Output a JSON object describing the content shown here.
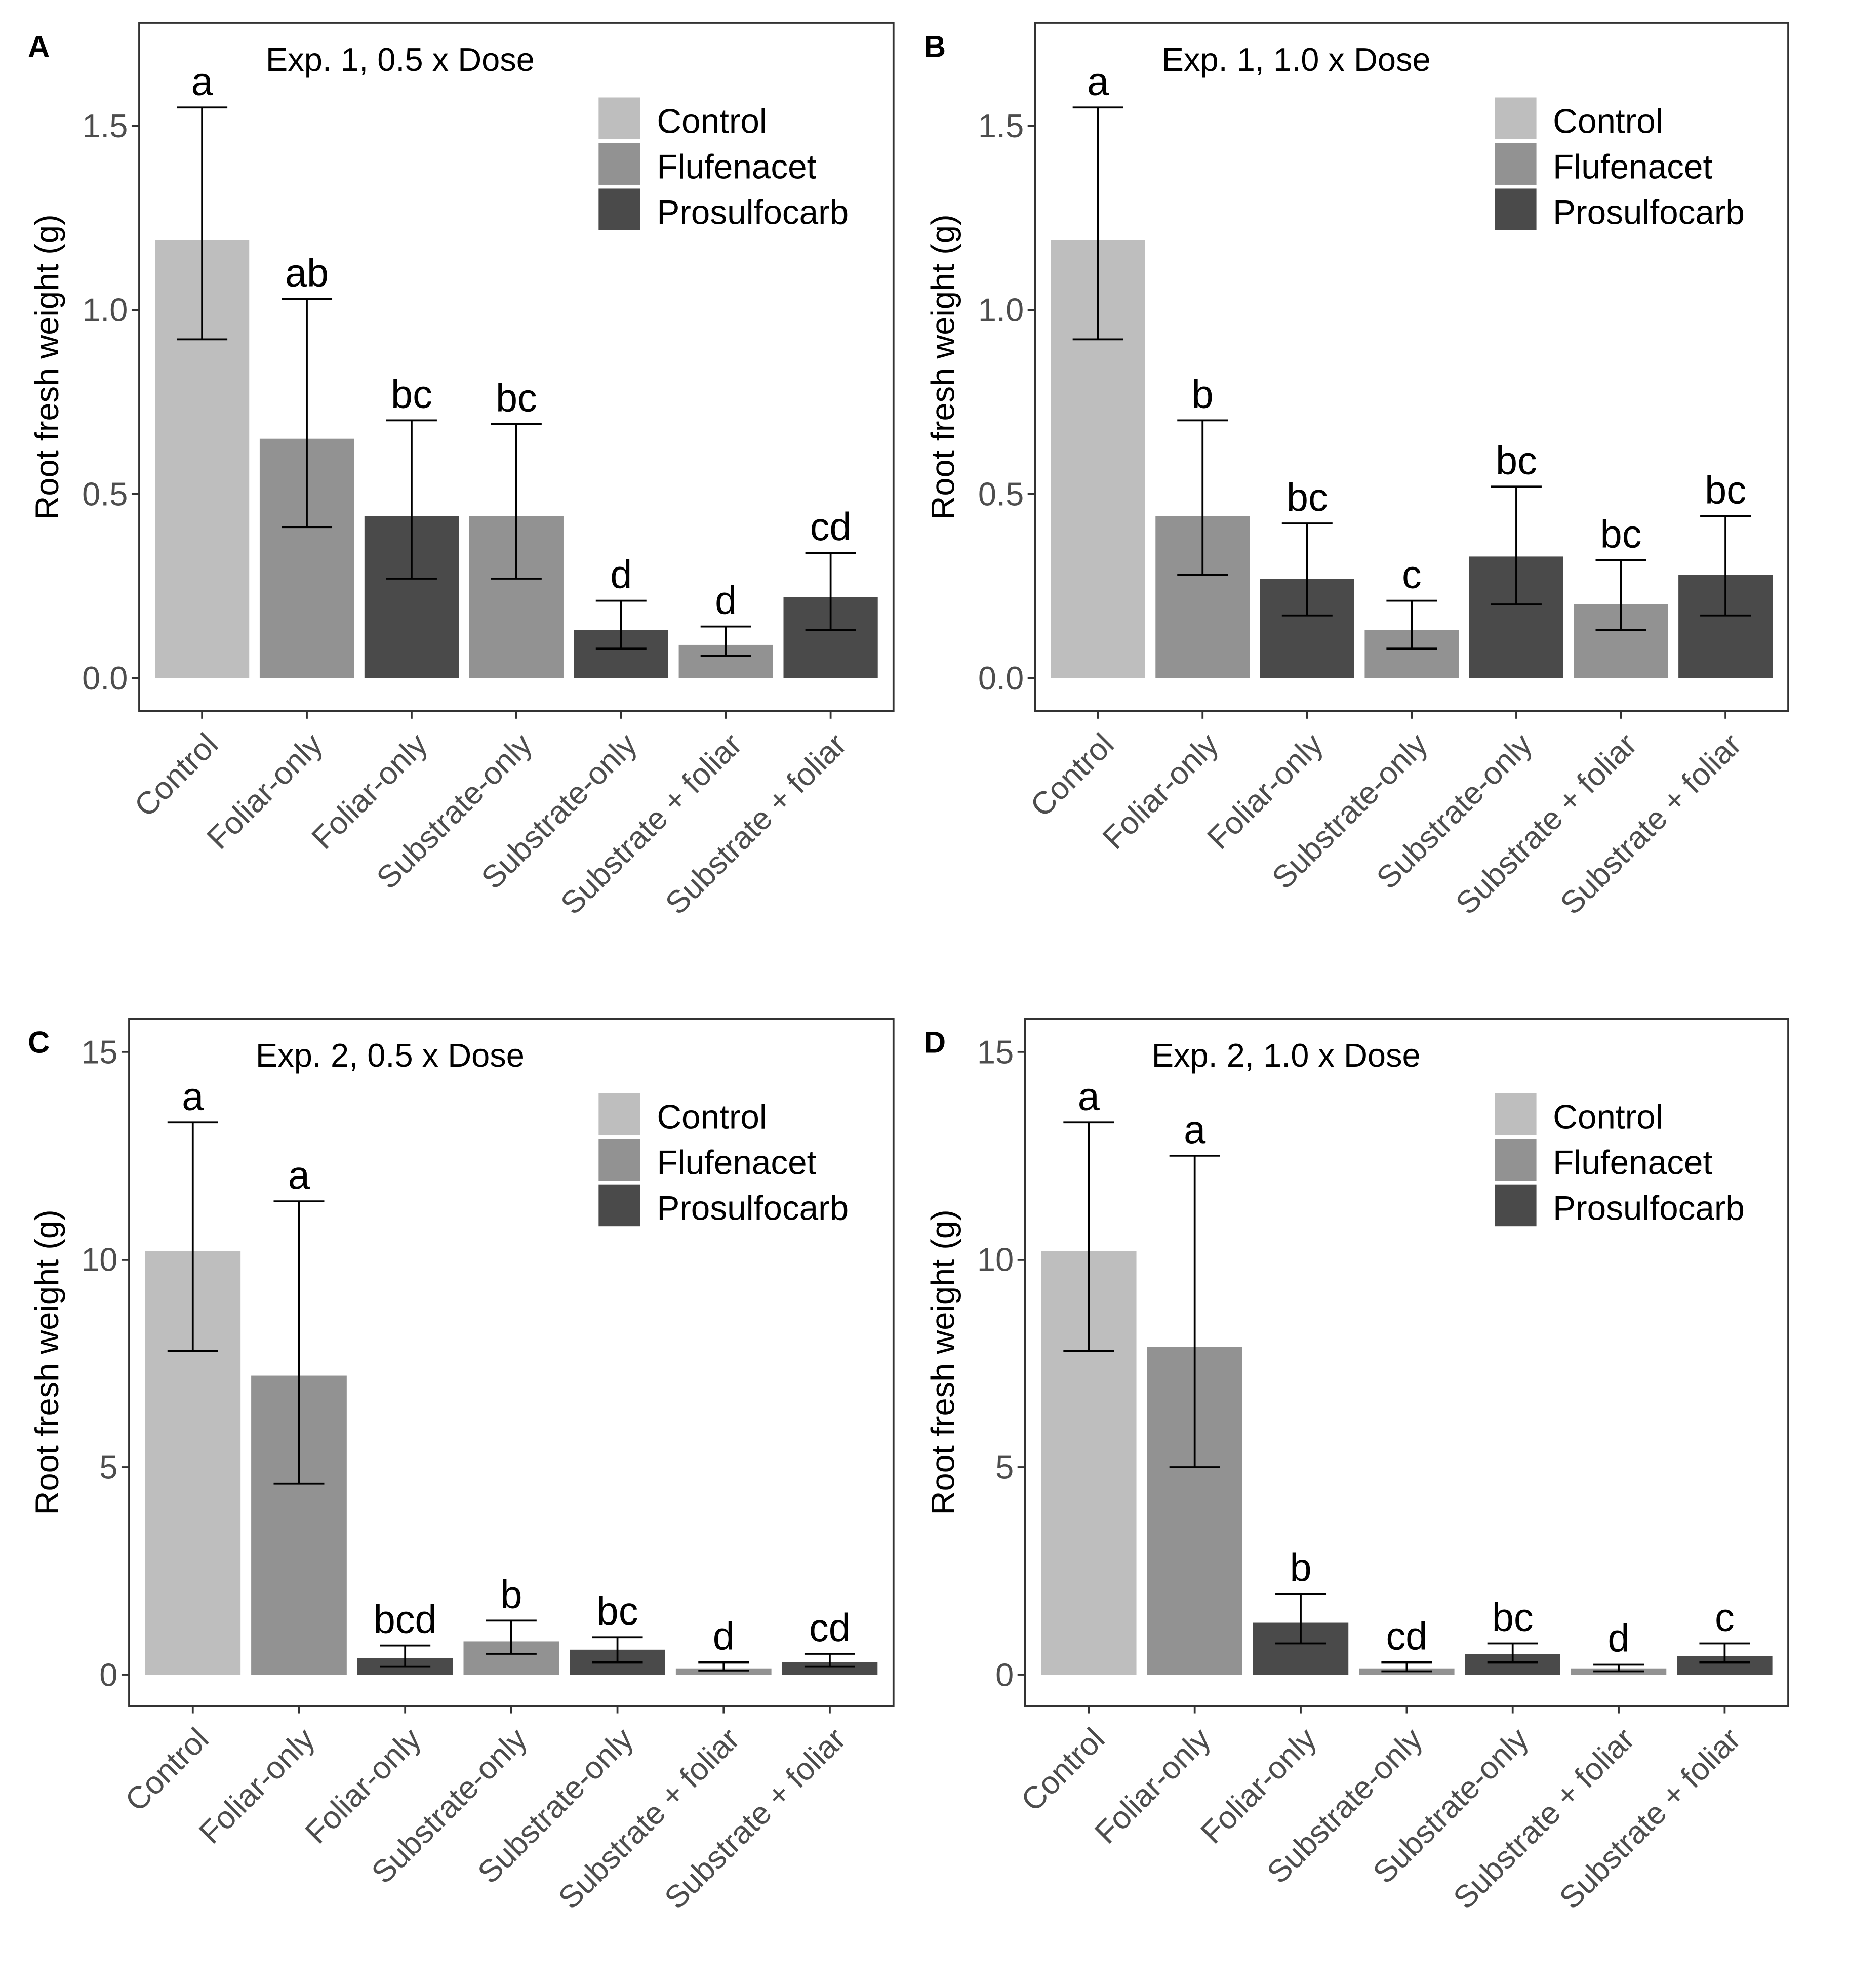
{
  "chart_data": [
    {
      "type": "bar",
      "panel_label": "A",
      "title": "Exp. 1, 0.5 x Dose",
      "ylabel": "Root fresh weight (g)",
      "xlabel": "",
      "ylim": [
        -0.09,
        1.78
      ],
      "yticks": [
        0.0,
        0.5,
        1.0,
        1.5
      ],
      "ytick_labels": [
        "0.0",
        "0.5",
        "1.0",
        "1.5"
      ],
      "categories": [
        "Control",
        "Foliar-only",
        "Foliar-only",
        "Substrate-only",
        "Substrate-only",
        "Substrate + foliar",
        "Substrate + foliar"
      ],
      "herbicide": [
        "Control",
        "Flufenacet",
        "Prosulfocarb",
        "Flufenacet",
        "Prosulfocarb",
        "Flufenacet",
        "Prosulfocarb"
      ],
      "values": [
        1.19,
        0.65,
        0.44,
        0.44,
        0.13,
        0.09,
        0.22
      ],
      "err_low": [
        0.92,
        0.41,
        0.27,
        0.27,
        0.08,
        0.06,
        0.13
      ],
      "err_high": [
        1.55,
        1.03,
        0.7,
        0.69,
        0.21,
        0.14,
        0.34
      ],
      "letters": [
        "a",
        "ab",
        "bc",
        "bc",
        "d",
        "d",
        "cd"
      ]
    },
    {
      "type": "bar",
      "panel_label": "B",
      "title": "Exp. 1, 1.0 x Dose",
      "ylabel": "Root fresh weight (g)",
      "xlabel": "",
      "ylim": [
        -0.09,
        1.78
      ],
      "yticks": [
        0.0,
        0.5,
        1.0,
        1.5
      ],
      "ytick_labels": [
        "0.0",
        "0.5",
        "1.0",
        "1.5"
      ],
      "categories": [
        "Control",
        "Foliar-only",
        "Foliar-only",
        "Substrate-only",
        "Substrate-only",
        "Substrate + foliar",
        "Substrate + foliar"
      ],
      "herbicide": [
        "Control",
        "Flufenacet",
        "Prosulfocarb",
        "Flufenacet",
        "Prosulfocarb",
        "Flufenacet",
        "Prosulfocarb"
      ],
      "values": [
        1.19,
        0.44,
        0.27,
        0.13,
        0.33,
        0.2,
        0.28
      ],
      "err_low": [
        0.92,
        0.28,
        0.17,
        0.08,
        0.2,
        0.13,
        0.17
      ],
      "err_high": [
        1.55,
        0.7,
        0.42,
        0.21,
        0.52,
        0.32,
        0.44
      ],
      "letters": [
        "a",
        "b",
        "bc",
        "c",
        "bc",
        "bc",
        "bc"
      ]
    },
    {
      "type": "bar",
      "panel_label": "C",
      "title": "Exp. 2, 0.5 x Dose",
      "ylabel": "Root fresh weight (g)",
      "xlabel": "",
      "ylim": [
        -0.75,
        15.8
      ],
      "yticks": [
        0,
        5,
        10,
        15
      ],
      "ytick_labels": [
        "0",
        "5",
        "10",
        "15"
      ],
      "categories": [
        "Control",
        "Foliar-only",
        "Foliar-only",
        "Substrate-only",
        "Substrate-only",
        "Substrate + foliar",
        "Substrate + foliar"
      ],
      "herbicide": [
        "Control",
        "Flufenacet",
        "Prosulfocarb",
        "Flufenacet",
        "Prosulfocarb",
        "Flufenacet",
        "Prosulfocarb"
      ],
      "values": [
        10.2,
        7.2,
        0.4,
        0.8,
        0.6,
        0.15,
        0.3
      ],
      "err_low": [
        7.8,
        4.6,
        0.2,
        0.5,
        0.3,
        0.1,
        0.2
      ],
      "err_high": [
        13.3,
        11.4,
        0.7,
        1.3,
        0.9,
        0.3,
        0.5
      ],
      "letters": [
        "a",
        "a",
        "bcd",
        "b",
        "bc",
        "d",
        "cd"
      ]
    },
    {
      "type": "bar",
      "panel_label": "D",
      "title": "Exp. 2, 1.0 x Dose",
      "ylabel": "Root fresh weight (g)",
      "xlabel": "",
      "ylim": [
        -0.75,
        15.8
      ],
      "yticks": [
        0,
        5,
        10,
        15
      ],
      "ytick_labels": [
        "0",
        "5",
        "10",
        "15"
      ],
      "categories": [
        "Control",
        "Foliar-only",
        "Foliar-only",
        "Substrate-only",
        "Substrate-only",
        "Substrate + foliar",
        "Substrate + foliar"
      ],
      "herbicide": [
        "Control",
        "Flufenacet",
        "Prosulfocarb",
        "Flufenacet",
        "Prosulfocarb",
        "Flufenacet",
        "Prosulfocarb"
      ],
      "values": [
        10.2,
        7.9,
        1.25,
        0.15,
        0.5,
        0.15,
        0.45
      ],
      "err_low": [
        7.8,
        5.0,
        0.75,
        0.08,
        0.3,
        0.08,
        0.3
      ],
      "err_high": [
        13.3,
        12.5,
        1.95,
        0.3,
        0.75,
        0.25,
        0.75
      ],
      "letters": [
        "a",
        "a",
        "b",
        "cd",
        "bc",
        "d",
        "c"
      ]
    }
  ],
  "legend": {
    "position": "top-right",
    "entries": [
      "Control",
      "Flufenacet",
      "Prosulfocarb"
    ]
  },
  "colors": {
    "Control": "#bebebe",
    "Flufenacet": "#929292",
    "Prosulfocarb": "#4a4a4a"
  }
}
